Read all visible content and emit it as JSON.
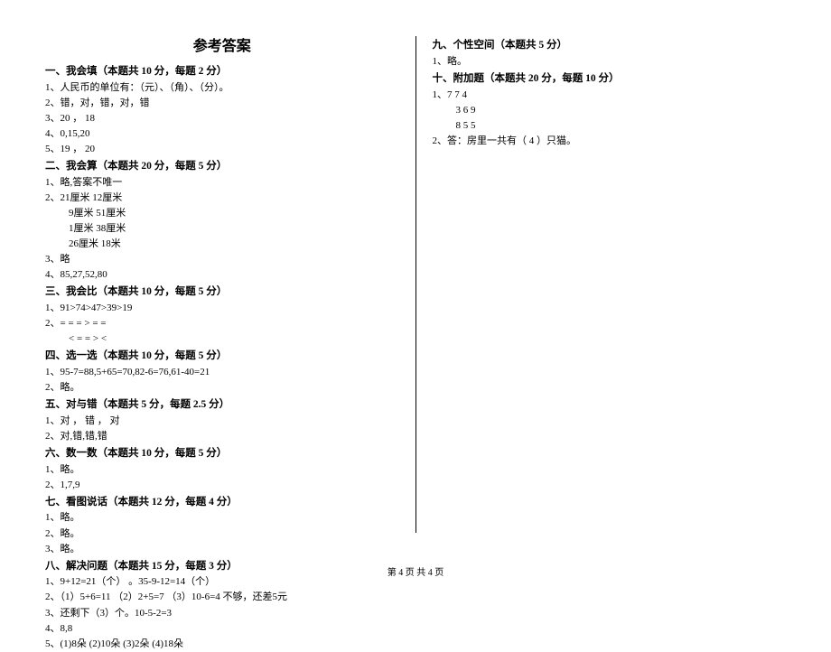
{
  "title": "参考答案",
  "left": {
    "sections": [
      {
        "heading": "一、我会填（本题共 10 分，每题 2 分）",
        "lines": [
          "1、人民币的单位有：（元）、（角）、（分）。",
          "2、错，对，错，对，错",
          "3、20 ， 18",
          "4、0,15,20",
          "5、19 ， 20"
        ]
      },
      {
        "heading": "二、我会算（本题共 20 分，每题 5 分）",
        "lines": [
          "1、略,答案不唯一",
          "2、21厘米    12厘米",
          {
            "text": "9厘米     51厘米",
            "indent": true
          },
          {
            "text": "1厘米     38厘米",
            "indent": true
          },
          {
            "text": "26厘米    18米",
            "indent": true
          },
          "3、略",
          "4、85,27,52,80"
        ]
      },
      {
        "heading": "三、我会比（本题共 10 分，每题 5 分）",
        "lines": [
          "1、91>74>47>39>19",
          "2、=   =   =   >   =   =",
          {
            "text": "<   =   =   >   <",
            "indent": true
          }
        ]
      },
      {
        "heading": "四、选一选（本题共 10 分，每题 5 分）",
        "lines": [
          "1、95-7=88,5+65=70,82-6=76,61-40=21",
          "2、略。"
        ]
      },
      {
        "heading": "五、对与错（本题共 5 分，每题 2.5 分）",
        "lines": [
          "1、对 ， 错  ， 对",
          "2、对,错,错,错"
        ]
      },
      {
        "heading": "六、数一数（本题共 10 分，每题 5 分）",
        "lines": [
          "1、略。",
          "2、1,7,9"
        ]
      },
      {
        "heading": "七、看图说话（本题共 12 分，每题 4 分）",
        "lines": [
          "1、略。",
          "2、略。",
          "3、略。"
        ]
      },
      {
        "heading": "八、解决问题（本题共 15 分，每题 3 分）",
        "lines": [
          "1、9+12=21（个） 。35-9-12=14（个）",
          "2、（1）5+6=11 （2）2+5=7 （3）10-6=4   不够，还差5元",
          "3、还剩下（3）个。10-5-2=3",
          "4、8,8",
          "5、(1)8朵 (2)10朵 (3)2朵 (4)18朵"
        ]
      }
    ]
  },
  "right": {
    "sections": [
      {
        "heading": "九、个性空间（本题共 5 分）",
        "lines": [
          "1、略。"
        ]
      },
      {
        "heading": "十、附加题（本题共 20 分，每题 10 分）",
        "lines": [
          "1、7   7   4",
          {
            "text": "3   6   9",
            "indent": true
          },
          {
            "text": "8   5   5",
            "indent": true
          },
          "2、答：房里一共有（ 4 ）只猫。"
        ]
      }
    ]
  },
  "footer": "第 4 页 共 4 页"
}
